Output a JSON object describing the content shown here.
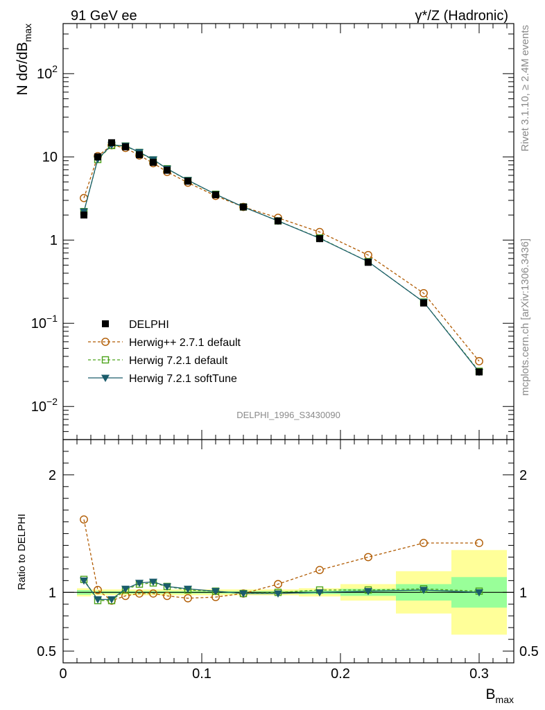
{
  "header": {
    "left": "91 GeV ee",
    "right": "γ*/Z (Hadronic)"
  },
  "side_labels": {
    "rivet": "Rivet 3.1.10, ≥ 2.4M events",
    "mcplots": "mcplots.cern.ch [arXiv:1306.3436]"
  },
  "analysis_label": "DELPHI_1996_S3430090",
  "chart_data": [
    {
      "type": "line",
      "panel": "main",
      "ylabel": "N dσ/dB_max",
      "yscale": "log",
      "ylim": [
        0.004,
        400
      ],
      "xlim": [
        0,
        0.325
      ],
      "y_ticks": [
        {
          "value": 100,
          "label": "10^2"
        },
        {
          "value": 10,
          "label": "10"
        },
        {
          "value": 1,
          "label": "1"
        },
        {
          "value": 0.1,
          "label": "10^−1"
        },
        {
          "value": 0.01,
          "label": "10^−2"
        }
      ],
      "x": [
        0.015,
        0.025,
        0.035,
        0.045,
        0.055,
        0.065,
        0.075,
        0.09,
        0.11,
        0.13,
        0.155,
        0.185,
        0.22,
        0.26,
        0.3
      ],
      "series": [
        {
          "name": "DELPHI",
          "color": "#000000",
          "marker": "filled-square",
          "values": [
            2.0,
            10.0,
            14.8,
            13.2,
            10.6,
            8.6,
            6.9,
            5.1,
            3.5,
            2.5,
            1.7,
            1.04,
            0.54,
            0.175,
            0.026
          ]
        },
        {
          "name": "Herwig++ 2.7.1 default",
          "color": "#b05a00",
          "marker": "open-circle",
          "dash": true,
          "values": [
            3.2,
            10.2,
            13.8,
            12.8,
            10.4,
            8.4,
            6.6,
            4.9,
            3.4,
            2.5,
            1.85,
            1.25,
            0.66,
            0.23,
            0.035
          ]
        },
        {
          "name": "Herwig 7.2.1 default",
          "color": "#4ca31a",
          "marker": "open-square",
          "dash": true,
          "values": [
            2.2,
            9.3,
            13.7,
            13.5,
            11.3,
            9.2,
            7.2,
            5.2,
            3.55,
            2.5,
            1.7,
            1.06,
            0.55,
            0.18,
            0.0265
          ]
        },
        {
          "name": "Herwig 7.2.1 softTune",
          "color": "#1a5c6b",
          "marker": "filled-triangle-down",
          "values": [
            2.2,
            9.4,
            13.9,
            13.6,
            11.4,
            9.3,
            7.2,
            5.25,
            3.55,
            2.5,
            1.7,
            1.05,
            0.55,
            0.18,
            0.026
          ]
        }
      ]
    },
    {
      "type": "line",
      "panel": "ratio",
      "ylabel": "Ratio to DELPHI",
      "xlabel": "B_max",
      "ylim": [
        0.4,
        2.3
      ],
      "xlim": [
        0,
        0.325
      ],
      "y_ticks": [
        {
          "value": 0.5,
          "label": "0.5"
        },
        {
          "value": 1,
          "label": "1"
        },
        {
          "value": 2,
          "label": "2"
        }
      ],
      "x_ticks": [
        {
          "value": 0,
          "label": "0"
        },
        {
          "value": 0.1,
          "label": "0.1"
        },
        {
          "value": 0.2,
          "label": "0.2"
        },
        {
          "value": 0.3,
          "label": "0.3"
        }
      ],
      "x_minor": 0.01,
      "bins": [
        0.01,
        0.02,
        0.03,
        0.04,
        0.05,
        0.06,
        0.07,
        0.08,
        0.1,
        0.12,
        0.14,
        0.17,
        0.2,
        0.24,
        0.28,
        0.32
      ],
      "band_stat_halfwidth": [
        0.02,
        0.01,
        0.01,
        0.01,
        0.01,
        0.01,
        0.01,
        0.01,
        0.01,
        0.01,
        0.01,
        0.015,
        0.03,
        0.07,
        0.13
      ],
      "band_total_halfwidth": [
        0.035,
        0.025,
        0.025,
        0.025,
        0.025,
        0.025,
        0.025,
        0.025,
        0.025,
        0.025,
        0.025,
        0.035,
        0.07,
        0.18,
        0.36
      ],
      "band_colors": {
        "total": "#ffff99",
        "stat": "#99ff99"
      },
      "x": [
        0.015,
        0.025,
        0.035,
        0.045,
        0.055,
        0.065,
        0.075,
        0.09,
        0.11,
        0.13,
        0.155,
        0.185,
        0.22,
        0.26,
        0.3
      ],
      "series": [
        {
          "name": "Herwig++ 2.7.1 default",
          "color": "#b05a00",
          "marker": "open-circle",
          "dash": true,
          "values": [
            1.62,
            1.02,
            0.93,
            0.97,
            0.99,
            0.99,
            0.97,
            0.95,
            0.96,
            0.99,
            1.07,
            1.19,
            1.3,
            1.42,
            1.42
          ]
        },
        {
          "name": "Herwig 7.2.1 default",
          "color": "#4ca31a",
          "marker": "open-square",
          "dash": true,
          "values": [
            1.11,
            0.93,
            0.93,
            1.02,
            1.07,
            1.08,
            1.05,
            1.02,
            1.01,
            0.99,
            1.0,
            1.02,
            1.02,
            1.03,
            1.01
          ]
        },
        {
          "name": "Herwig 7.2.1 softTune",
          "color": "#1a5c6b",
          "marker": "filled-triangle-down",
          "values": [
            1.1,
            0.94,
            0.94,
            1.03,
            1.08,
            1.09,
            1.05,
            1.03,
            1.01,
            0.99,
            0.99,
            1.0,
            1.01,
            1.02,
            1.0
          ]
        }
      ]
    }
  ]
}
